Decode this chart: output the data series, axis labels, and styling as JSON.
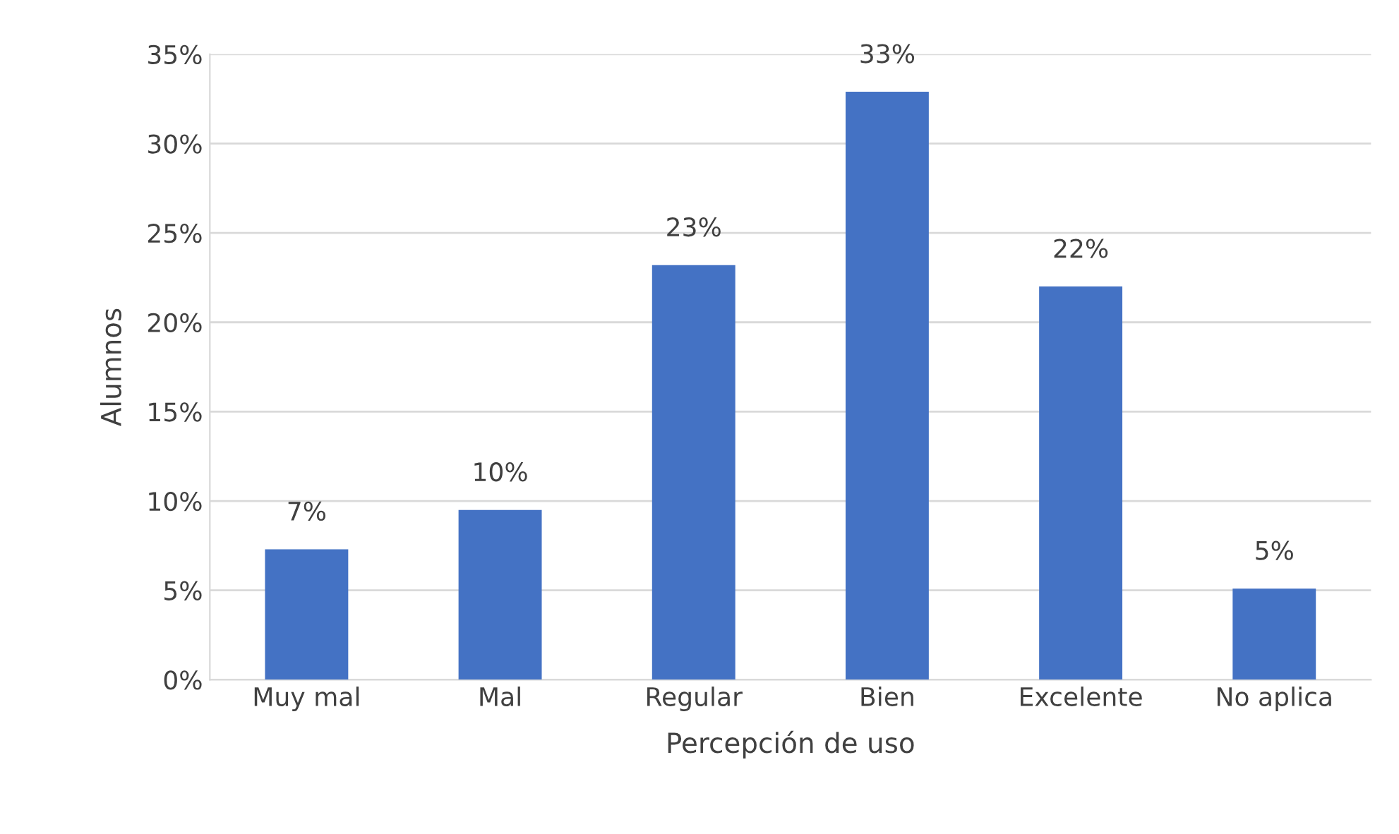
{
  "chart_data": {
    "type": "bar",
    "xlabel": "Percepción de uso",
    "ylabel": "Alumnos",
    "categories": [
      "Muy mal",
      "Mal",
      "Regular",
      "Bien",
      "Excelente",
      "No aplica"
    ],
    "values": [
      7.3,
      9.5,
      23.2,
      32.9,
      22.0,
      5.1
    ],
    "value_labels": [
      "7%",
      "10%",
      "23%",
      "33%",
      "22%",
      "5%"
    ],
    "color": "#4472c4",
    "ylim": [
      0,
      35
    ],
    "yticks": [
      {
        "value": 0,
        "label": "0%"
      },
      {
        "value": 5,
        "label": "5%"
      },
      {
        "value": 10,
        "label": "10%"
      },
      {
        "value": 15,
        "label": "15%"
      },
      {
        "value": 20,
        "label": "20%"
      },
      {
        "value": 25,
        "label": "25%"
      },
      {
        "value": 30,
        "label": "30%"
      },
      {
        "value": 35,
        "label": "35%"
      }
    ],
    "grid": "y"
  }
}
